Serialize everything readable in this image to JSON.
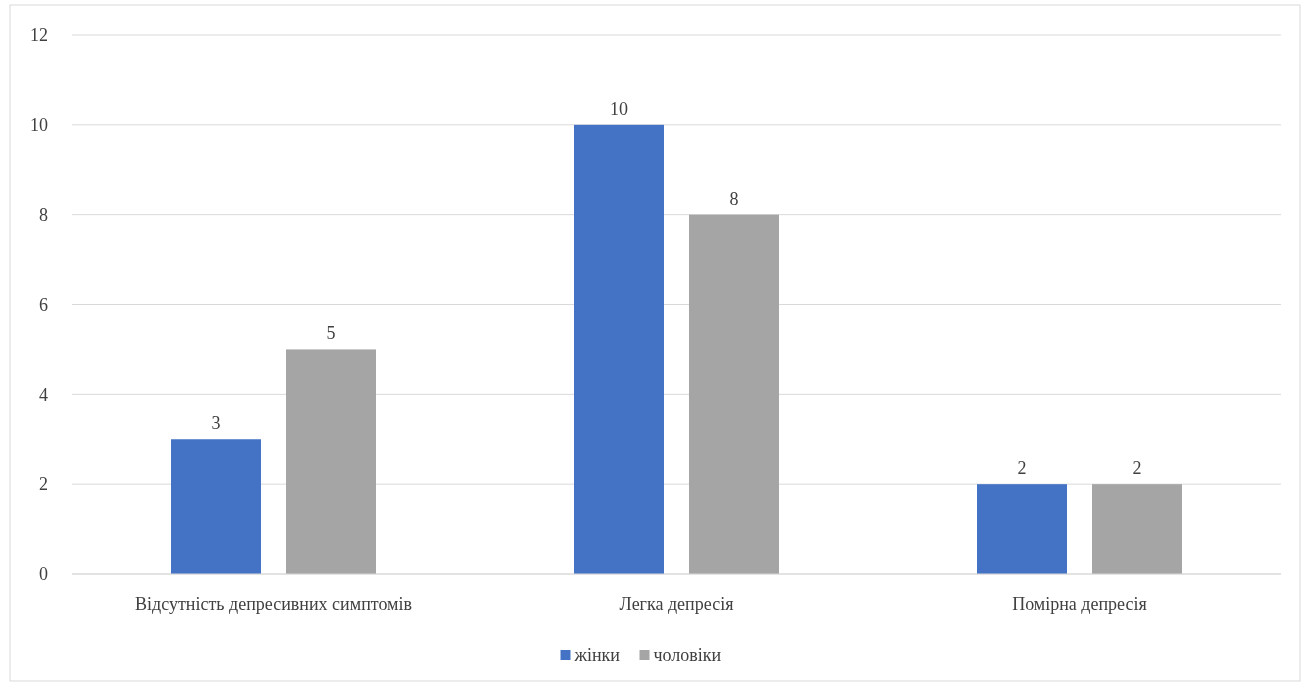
{
  "chart_data": {
    "type": "bar",
    "categories": [
      "Відсутність депресивних симптомів",
      "Легка депресія",
      "Помірна депресія"
    ],
    "series": [
      {
        "name": "жінки",
        "color": "#4472c4",
        "values": [
          3,
          10,
          2
        ]
      },
      {
        "name": "чоловіки",
        "color": "#a5a5a5",
        "values": [
          5,
          8,
          2
        ]
      }
    ],
    "ylim": [
      0,
      12
    ],
    "yticks": [
      0,
      2,
      4,
      6,
      8,
      10,
      12
    ],
    "grid": "y",
    "legend": "bottom",
    "data_labels": true
  }
}
